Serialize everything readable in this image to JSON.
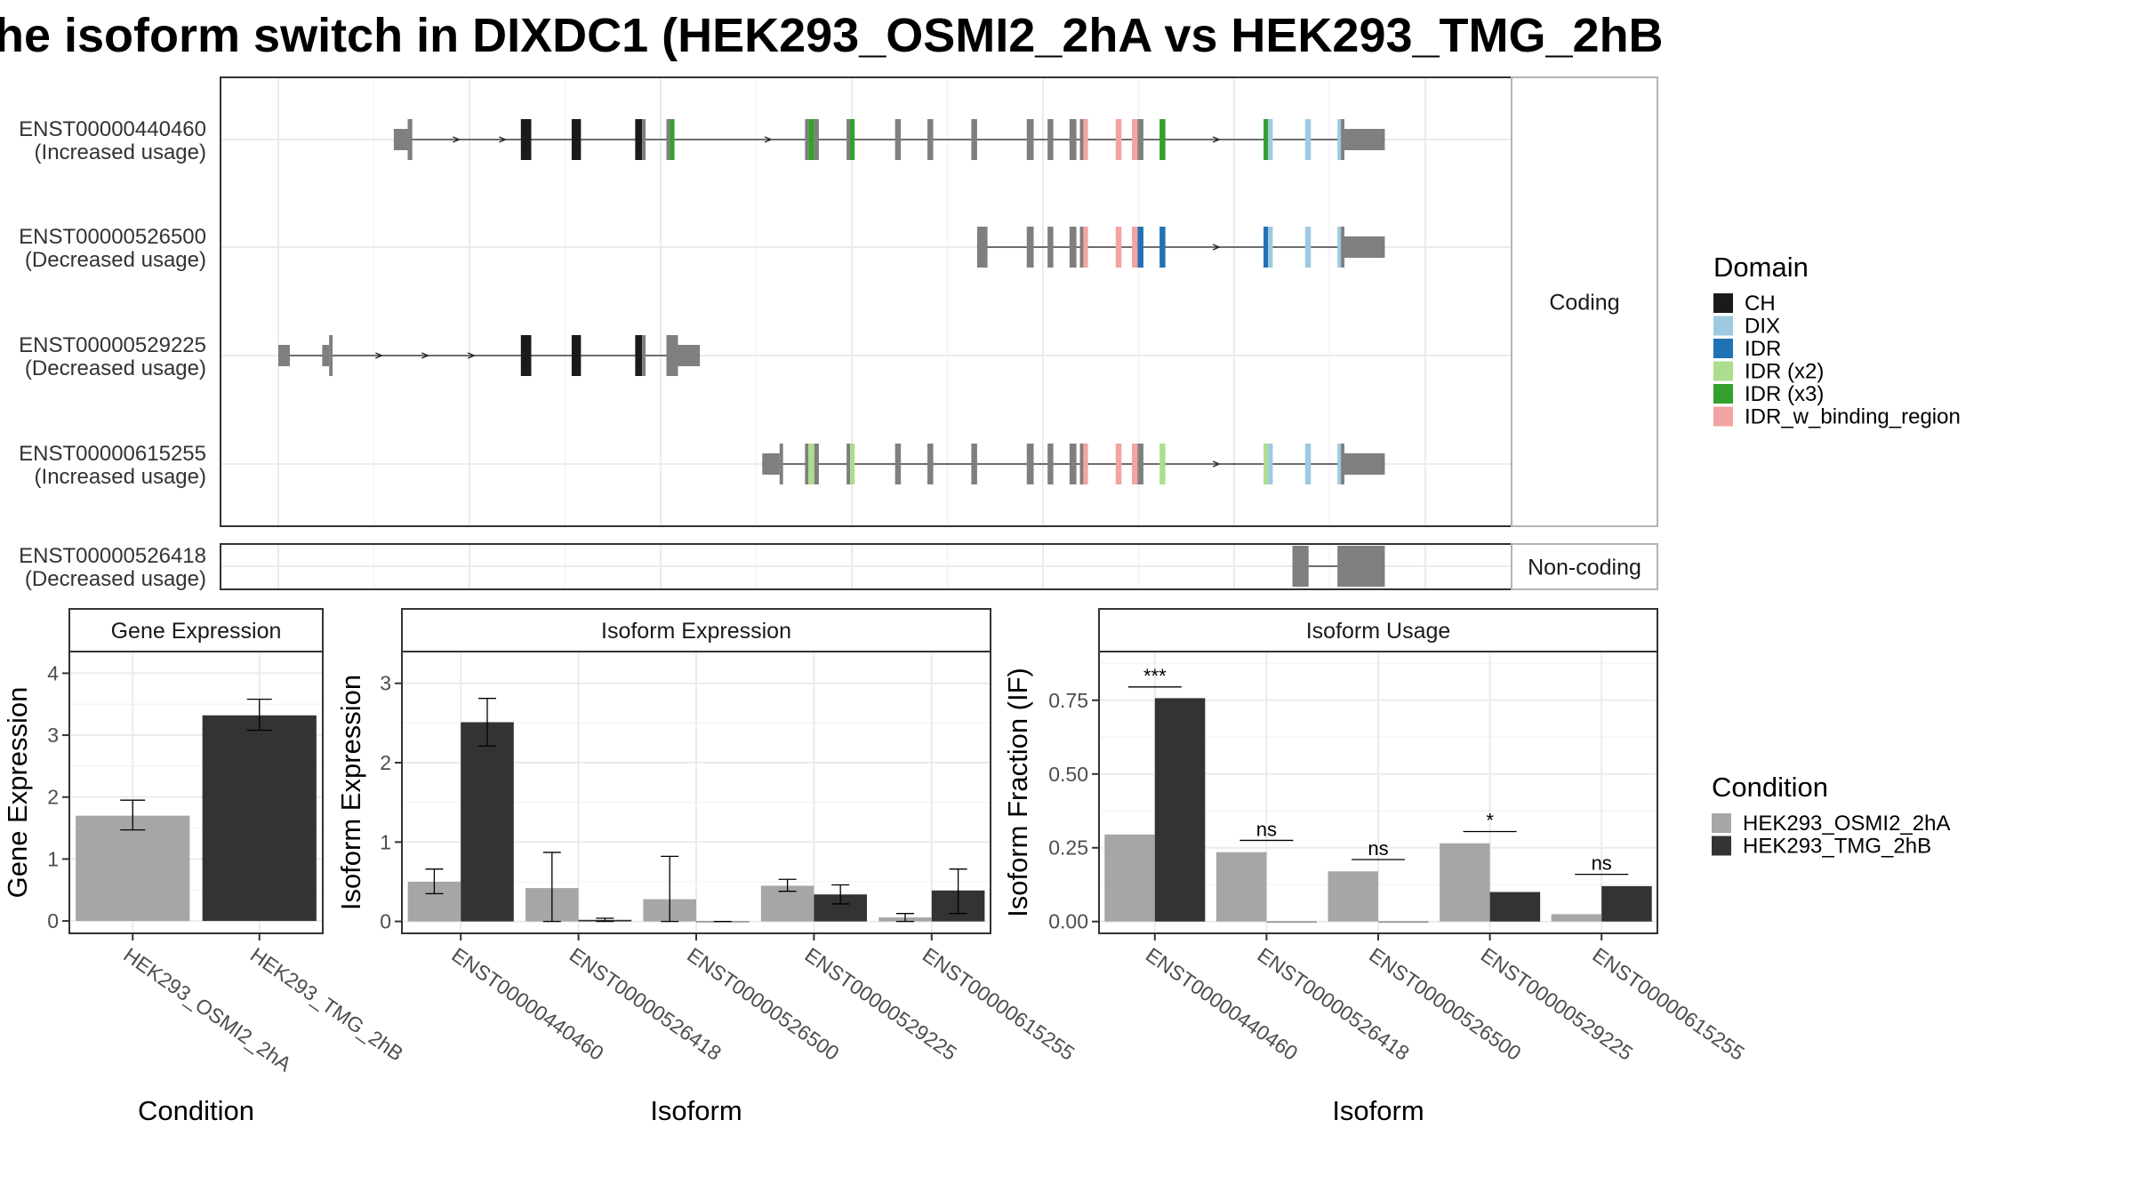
{
  "title": "he isoform switch in DIXDC1 (HEK293_OSMI2_2hA vs HEK293_TMG_2hB",
  "colors": {
    "exon": "#7f7f7f",
    "CH": "#1a1a1a",
    "DIX": "#9ecae1",
    "IDR": "#2171b5",
    "IDR (x2)": "#addd8e",
    "IDR (x3)": "#33a02c",
    "IDR_w_binding_region": "#f4a3a3",
    "HEK293_OSMI2_2hA": "#a6a6a6",
    "HEK293_TMG_2hB": "#333333"
  },
  "isoform_plot": {
    "coding_strip": "Coding",
    "noncoding_strip": "Non-coding",
    "transcripts": [
      {
        "id": "ENST00000440460",
        "usage": "(Increased usage)",
        "group": "coding",
        "exons": [
          [
            0.1,
            0.112,
            "u"
          ],
          [
            0.112,
            0.116,
            "c"
          ],
          [
            0.21,
            0.219,
            "CH"
          ],
          [
            0.254,
            0.262,
            "CH"
          ],
          [
            0.309,
            0.315,
            "CH"
          ],
          [
            0.315,
            0.318,
            "c"
          ],
          [
            0.336,
            0.339,
            "c"
          ],
          [
            0.339,
            0.343,
            "IDR (x3)"
          ],
          [
            0.456,
            0.459,
            "c"
          ],
          [
            0.459,
            0.464,
            "IDR (x3)"
          ],
          [
            0.464,
            0.468,
            "c"
          ],
          [
            0.492,
            0.495,
            "c"
          ],
          [
            0.495,
            0.499,
            "IDR (x3)"
          ],
          [
            0.534,
            0.539,
            "c"
          ],
          [
            0.562,
            0.567,
            "c"
          ],
          [
            0.6,
            0.605,
            "c"
          ],
          [
            0.648,
            0.654,
            "c"
          ],
          [
            0.666,
            0.671,
            "c"
          ],
          [
            0.685,
            0.691,
            "c"
          ],
          [
            0.694,
            0.697,
            "c"
          ],
          [
            0.697,
            0.701,
            "IDR_w_binding_region"
          ],
          [
            0.725,
            0.73,
            "IDR_w_binding_region"
          ],
          [
            0.739,
            0.744,
            "IDR_w_binding_region"
          ],
          [
            0.744,
            0.749,
            "c"
          ],
          [
            0.763,
            0.768,
            "IDR (x3)"
          ],
          [
            0.853,
            0.857,
            "IDR (x3)"
          ],
          [
            0.857,
            0.861,
            "DIX"
          ],
          [
            0.889,
            0.894,
            "DIX"
          ],
          [
            0.917,
            0.92,
            "DIX"
          ],
          [
            0.92,
            0.923,
            "c"
          ],
          [
            0.923,
            0.958,
            "u"
          ]
        ],
        "arrows": [
          0.155,
          0.195,
          0.425,
          0.813
        ]
      },
      {
        "id": "ENST00000526500",
        "usage": "(Decreased usage)",
        "group": "coding",
        "exons": [
          [
            0.605,
            0.614,
            "c"
          ],
          [
            0.648,
            0.654,
            "c"
          ],
          [
            0.666,
            0.671,
            "c"
          ],
          [
            0.685,
            0.691,
            "c"
          ],
          [
            0.694,
            0.697,
            "c"
          ],
          [
            0.697,
            0.701,
            "IDR_w_binding_region"
          ],
          [
            0.725,
            0.73,
            "IDR_w_binding_region"
          ],
          [
            0.739,
            0.744,
            "IDR_w_binding_region"
          ],
          [
            0.744,
            0.749,
            "IDR"
          ],
          [
            0.763,
            0.768,
            "IDR"
          ],
          [
            0.853,
            0.857,
            "IDR"
          ],
          [
            0.857,
            0.861,
            "DIX"
          ],
          [
            0.889,
            0.894,
            "DIX"
          ],
          [
            0.917,
            0.92,
            "DIX"
          ],
          [
            0.92,
            0.923,
            "c"
          ],
          [
            0.923,
            0.958,
            "u"
          ]
        ],
        "arrows": [
          0.813
        ]
      },
      {
        "id": "ENST00000529225",
        "usage": "(Decreased usage)",
        "group": "coding",
        "exons": [
          [
            0.0,
            0.01,
            "u"
          ],
          [
            0.038,
            0.044,
            "u"
          ],
          [
            0.044,
            0.047,
            "c"
          ],
          [
            0.21,
            0.219,
            "CH"
          ],
          [
            0.254,
            0.262,
            "CH"
          ],
          [
            0.309,
            0.315,
            "CH"
          ],
          [
            0.315,
            0.318,
            "c"
          ],
          [
            0.336,
            0.346,
            "c"
          ],
          [
            0.346,
            0.365,
            "u"
          ]
        ],
        "arrows": [
          0.088,
          0.128,
          0.168
        ]
      },
      {
        "id": "ENST00000615255",
        "usage": "(Increased usage)",
        "group": "coding",
        "exons": [
          [
            0.419,
            0.434,
            "u"
          ],
          [
            0.434,
            0.437,
            "c"
          ],
          [
            0.456,
            0.459,
            "c"
          ],
          [
            0.459,
            0.464,
            "IDR (x2)"
          ],
          [
            0.464,
            0.468,
            "c"
          ],
          [
            0.492,
            0.495,
            "c"
          ],
          [
            0.495,
            0.499,
            "IDR (x2)"
          ],
          [
            0.534,
            0.539,
            "c"
          ],
          [
            0.562,
            0.567,
            "c"
          ],
          [
            0.6,
            0.605,
            "c"
          ],
          [
            0.648,
            0.654,
            "c"
          ],
          [
            0.666,
            0.671,
            "c"
          ],
          [
            0.685,
            0.691,
            "c"
          ],
          [
            0.694,
            0.697,
            "c"
          ],
          [
            0.697,
            0.701,
            "IDR_w_binding_region"
          ],
          [
            0.725,
            0.73,
            "IDR_w_binding_region"
          ],
          [
            0.739,
            0.744,
            "IDR_w_binding_region"
          ],
          [
            0.744,
            0.749,
            "c"
          ],
          [
            0.763,
            0.768,
            "IDR (x2)"
          ],
          [
            0.853,
            0.857,
            "IDR (x2)"
          ],
          [
            0.857,
            0.861,
            "DIX"
          ],
          [
            0.889,
            0.894,
            "DIX"
          ],
          [
            0.917,
            0.92,
            "DIX"
          ],
          [
            0.92,
            0.923,
            "c"
          ],
          [
            0.923,
            0.958,
            "u"
          ]
        ],
        "arrows": [
          0.813
        ]
      },
      {
        "id": "ENST00000526418",
        "usage": "(Decreased usage)",
        "group": "noncoding",
        "exons": [
          [
            0.878,
            0.892,
            "u"
          ],
          [
            0.917,
            0.958,
            "u"
          ]
        ],
        "arrows": []
      }
    ]
  },
  "legend_domain": {
    "title": "Domain",
    "items": [
      "CH",
      "DIX",
      "IDR",
      "IDR (x2)",
      "IDR (x3)",
      "IDR_w_binding_region"
    ]
  },
  "legend_condition": {
    "title": "Condition",
    "items": [
      "HEK293_OSMI2_2hA",
      "HEK293_TMG_2hB"
    ]
  },
  "chart_data": [
    {
      "type": "bar",
      "title": "Gene Expression",
      "xlabel": "Condition",
      "ylabel": "Gene Expression",
      "categories": [
        "HEK293_OSMI2_2hA",
        "HEK293_TMG_2hB"
      ],
      "values": [
        1.7,
        3.32
      ],
      "errors": [
        [
          1.47,
          1.95
        ],
        [
          3.08,
          3.58
        ]
      ],
      "ylim": [
        -0.2,
        4.35
      ],
      "yticks": [
        0,
        1,
        2,
        3,
        4
      ],
      "yticklabels": [
        "0",
        "1",
        "2",
        "3",
        "4"
      ]
    },
    {
      "type": "bar",
      "title": "Isoform Expression",
      "xlabel": "Isoform",
      "ylabel": "Isoform Expression",
      "categories": [
        "ENST00000440460",
        "ENST00000526418",
        "ENST00000526500",
        "ENST00000529225",
        "ENST00000615255"
      ],
      "series": [
        {
          "name": "HEK293_OSMI2_2hA",
          "values": [
            0.5,
            0.42,
            0.28,
            0.45,
            0.05
          ],
          "errors": [
            [
              0.35,
              0.66
            ],
            [
              0.0,
              0.87
            ],
            [
              0.0,
              0.82
            ],
            [
              0.38,
              0.53
            ],
            [
              0.0,
              0.1
            ]
          ]
        },
        {
          "name": "HEK293_TMG_2hB",
          "values": [
            2.51,
            0.02,
            0.0,
            0.34,
            0.39
          ],
          "errors": [
            [
              2.21,
              2.81
            ],
            [
              0.0,
              0.04
            ],
            [
              0.0,
              0.0
            ],
            [
              0.22,
              0.46
            ],
            [
              0.1,
              0.66
            ]
          ]
        }
      ],
      "ylim": [
        -0.15,
        3.4
      ],
      "yticks": [
        0,
        1,
        2,
        3
      ],
      "yticklabels": [
        "0",
        "1",
        "2",
        "3"
      ]
    },
    {
      "type": "bar",
      "title": "Isoform Usage",
      "xlabel": "Isoform",
      "ylabel": "Isoform Fraction (IF)",
      "categories": [
        "ENST00000440460",
        "ENST00000526418",
        "ENST00000526500",
        "ENST00000529225",
        "ENST00000615255"
      ],
      "series": [
        {
          "name": "HEK293_OSMI2_2hA",
          "values": [
            0.295,
            0.235,
            0.17,
            0.265,
            0.025
          ]
        },
        {
          "name": "HEK293_TMG_2hB",
          "values": [
            0.757,
            0.0,
            0.0,
            0.1,
            0.12
          ]
        }
      ],
      "significance": [
        {
          "index": 0,
          "label": "***",
          "y": 0.795
        },
        {
          "index": 1,
          "label": "ns",
          "y": 0.275
        },
        {
          "index": 2,
          "label": "ns",
          "y": 0.21
        },
        {
          "index": 3,
          "label": "*",
          "y": 0.305
        },
        {
          "index": 4,
          "label": "ns",
          "y": 0.16
        }
      ],
      "ylim": [
        -0.04,
        0.915
      ],
      "yticks": [
        0,
        0.25,
        0.5,
        0.75
      ],
      "yticklabels": [
        "0.00",
        "0.25",
        "0.50",
        "0.75"
      ]
    }
  ]
}
